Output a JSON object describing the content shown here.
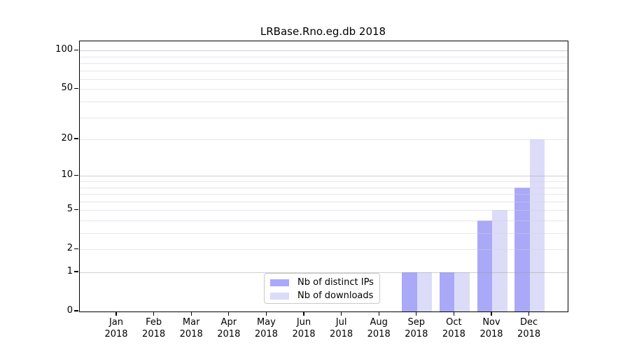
{
  "title": "LRBase.Rno.eg.db 2018",
  "background_color": "#ffffff",
  "chart_data": {
    "type": "bar",
    "title": "LRBase.Rno.eg.db 2018",
    "categories": [
      "Jan 2018",
      "Feb 2018",
      "Mar 2018",
      "Apr 2018",
      "May 2018",
      "Jun 2018",
      "Jul 2018",
      "Aug 2018",
      "Sep 2018",
      "Oct 2018",
      "Nov 2018",
      "Dec 2018"
    ],
    "series": [
      {
        "name": "Nb of distinct IPs",
        "color": "#a9a9f8",
        "values": [
          0,
          0,
          0,
          0,
          0,
          0,
          0,
          0,
          1,
          1,
          4,
          8
        ]
      },
      {
        "name": "Nb of downloads",
        "color": "#dcdcf9",
        "values": [
          0,
          0,
          0,
          0,
          0,
          0,
          0,
          0,
          1,
          1,
          5,
          20
        ]
      }
    ],
    "xlabel": "",
    "ylabel": "",
    "y_scale": "log10(1+x)",
    "y_tick_values": [
      0,
      1,
      2,
      5,
      10,
      20,
      50,
      100
    ],
    "y_major_gridlines": [
      1,
      10,
      100
    ],
    "y_minor_gridlines": [
      2,
      3,
      4,
      5,
      6,
      7,
      8,
      9,
      20,
      30,
      40,
      50,
      60,
      70,
      80,
      90
    ],
    "ylim": [
      0,
      118
    ],
    "grid": true,
    "grid_above_bars": true,
    "legend": {
      "position": "inside bottom, left of center",
      "entries": [
        "Nb of distinct IPs",
        "Nb of downloads"
      ]
    }
  }
}
